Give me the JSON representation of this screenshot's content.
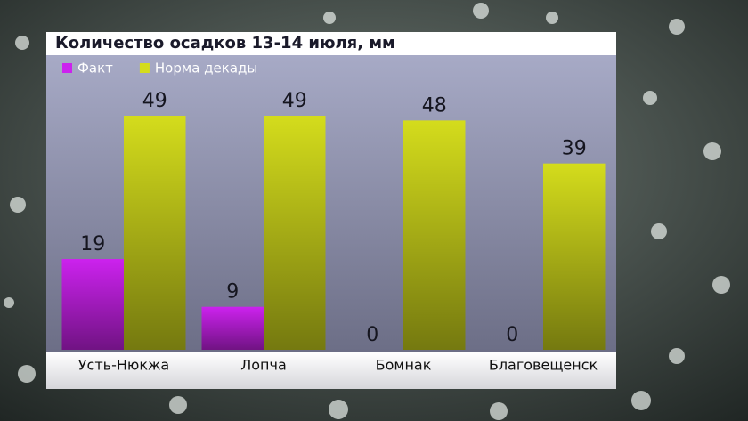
{
  "chart_data": {
    "type": "bar",
    "title": "Количество осадков 13-14 июля, мм",
    "categories": [
      "Усть-Нюкжа",
      "Лопча",
      "Бомнак",
      "Благовещенск"
    ],
    "series": [
      {
        "name": "Факт",
        "color": "#cc22ee",
        "values": [
          19,
          9,
          0,
          0
        ]
      },
      {
        "name": "Норма декады",
        "color": "#d4dc1c",
        "values": [
          49,
          49,
          48,
          39
        ]
      }
    ]
  }
}
